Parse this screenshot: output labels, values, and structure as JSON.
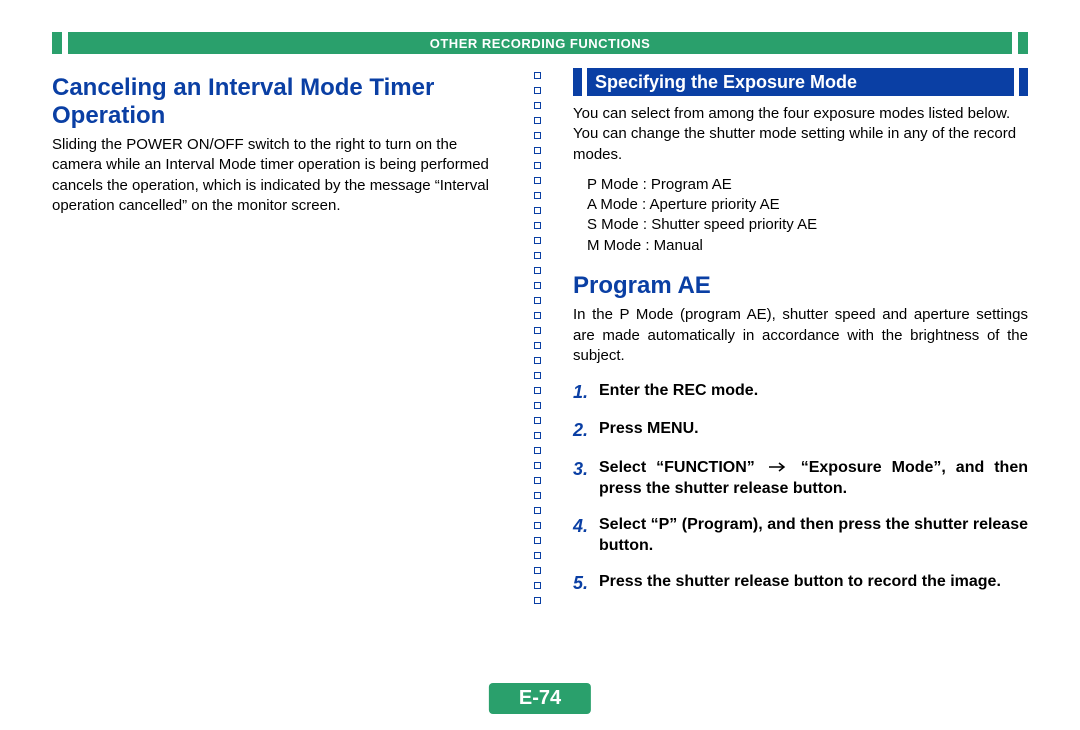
{
  "header": {
    "title": "OTHER RECORDING FUNCTIONS",
    "bg_color": "#2aa06c",
    "text_color": "#ffffff"
  },
  "left": {
    "heading": "Canceling an Interval Mode Timer Operation",
    "heading_color": "#0a3fa4",
    "body": "Sliding the POWER ON/OFF switch to the right to turn on the camera while an Interval Mode timer operation is being performed cancels the operation, which is indicated by the message “Interval operation cancelled” on the monitor screen."
  },
  "right": {
    "banner": {
      "title": "Specifying the Exposure Mode",
      "bg_color": "#0a3fa4",
      "text_color": "#ffffff"
    },
    "intro": "You can select from among the four exposure modes listed below. You can change the shutter mode setting while in any of the record modes.",
    "modes": [
      "P Mode : Program AE",
      "A Mode : Aperture priority AE",
      "S Mode : Shutter speed priority AE",
      "M Mode : Manual"
    ],
    "section_heading": "Program AE",
    "section_body": "In the P Mode (program AE), shutter speed and aperture settings are made automatically in accordance with the brightness of the subject.",
    "steps": [
      {
        "num": "1.",
        "text": "Enter the REC mode."
      },
      {
        "num": "2.",
        "text": "Press MENU."
      },
      {
        "num": "3.",
        "pre": "Select “FUNCTION”",
        "post": "“Exposure Mode”, and then press the shutter release button.",
        "arrow": true
      },
      {
        "num": "4.",
        "text": "Select “P” (Program), and then press the shutter release button."
      },
      {
        "num": "5.",
        "text": "Press the shutter release button to record the image."
      }
    ],
    "step_num_color": "#0a3fa4"
  },
  "divider": {
    "border_color": "#0a3fa4",
    "count": 36
  },
  "page_number": {
    "label": "E-74",
    "bg_color": "#2aa06c",
    "text_color": "#ffffff"
  }
}
